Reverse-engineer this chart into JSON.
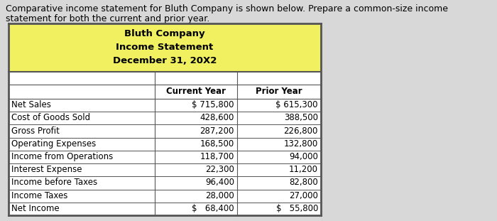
{
  "intro_text_line1": "Comparative income statement for Bluth Company is shown below. Prepare a common-size income",
  "intro_text_line2": "statement for both the current and prior year.",
  "title_line1": "Bluth Company",
  "title_line2": "Income Statement",
  "title_line3": "December 31, 20X2",
  "header_col1": "Current Year",
  "header_col2": "Prior Year",
  "row_labels": [
    "Net Sales",
    "Cost of Goods Sold",
    "Gross Profit",
    "Operating Expenses",
    "Income from Operations",
    "Interest Expense",
    "Income before Taxes",
    "Income Taxes",
    "Net Income"
  ],
  "current_year_values": [
    "$ 715,800",
    "428,600",
    "287,200",
    "168,500",
    "118,700",
    "22,300",
    "96,400",
    "28,000",
    "$   68,400"
  ],
  "prior_year_values": [
    "$ 615,300",
    "388,500",
    "226,800",
    "132,800",
    "94,000",
    "11,200",
    "82,800",
    "27,000",
    "$   55,800"
  ],
  "title_bg_color": "#f0f060",
  "border_color": "#555555",
  "fig_bg_color": "#d8d8d8",
  "intro_fontsize": 9.0,
  "title_fontsize": 9.5,
  "table_fontsize": 8.5
}
